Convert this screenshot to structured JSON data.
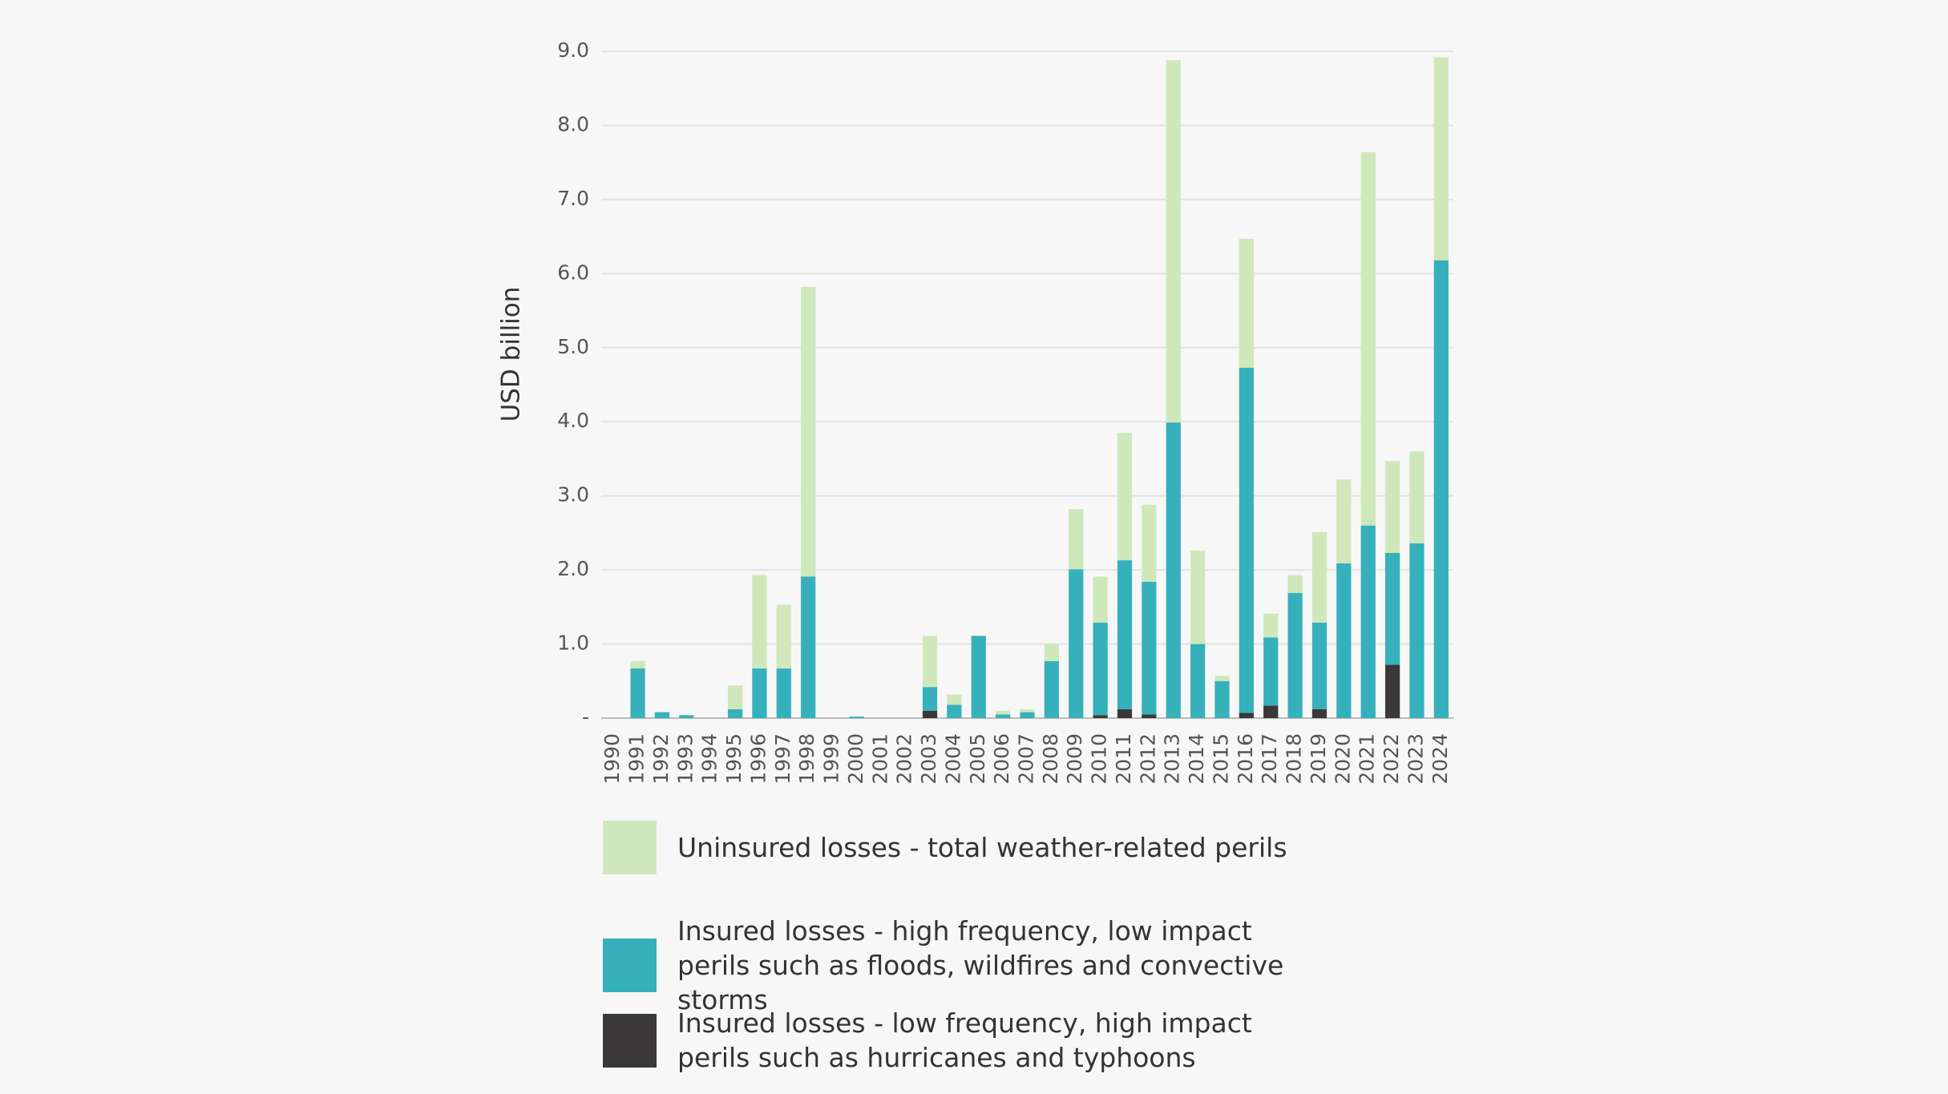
{
  "chart_data": {
    "type": "stacked_bar",
    "y_label": "USD billion",
    "categories": [
      "1990",
      "1991",
      "1992",
      "1993",
      "1994",
      "1995",
      "1996",
      "1997",
      "1998",
      "1999",
      "2000",
      "2001",
      "2002",
      "2003",
      "2004",
      "2005",
      "2006",
      "2007",
      "2008",
      "2009",
      "2010",
      "2011",
      "2012",
      "2013",
      "2014",
      "2015",
      "2016",
      "2017",
      "2018",
      "2019",
      "2020",
      "2021",
      "2022",
      "2023",
      "2024"
    ],
    "series": [
      {
        "name": "Uninsured losses - total weather-related perils",
        "color": "#cfe8bb",
        "values": [
          0,
          0.1,
          0,
          0,
          0,
          0.32,
          1.26,
          0.86,
          3.91,
          0,
          0,
          0,
          0,
          0.69,
          0.14,
          0,
          0.05,
          0.04,
          0.23,
          0.81,
          0.62,
          1.72,
          1.04,
          4.89,
          1.26,
          0.07,
          1.74,
          0.32,
          0.24,
          1.22,
          1.13,
          5.04,
          1.24,
          1.24,
          2.74
        ]
      },
      {
        "name": "Insured losses - high frequency, low impact perils such as floods, wildfires and convective storms",
        "color": "#36b0bb",
        "values": [
          0,
          0.67,
          0.08,
          0.04,
          0,
          0.12,
          0.67,
          0.67,
          1.91,
          0,
          0.02,
          0,
          0,
          0.32,
          0.18,
          1.11,
          0.05,
          0.08,
          0.77,
          2.01,
          1.25,
          2.01,
          1.79,
          3.99,
          1.0,
          0.5,
          4.66,
          0.92,
          1.69,
          1.17,
          2.09,
          2.6,
          1.51,
          2.36,
          6.18
        ]
      },
      {
        "name": "Insured losses - low frequency, high impact perils such as hurricanes and typhoons",
        "color": "#3a3838",
        "values": [
          0,
          0,
          0,
          0,
          0,
          0,
          0,
          0,
          0,
          0,
          0,
          0,
          0,
          0.1,
          0,
          0,
          0,
          0,
          0,
          0,
          0.04,
          0.12,
          0.05,
          0,
          0,
          0,
          0.07,
          0.17,
          0,
          0.12,
          0,
          0,
          0.72,
          0,
          0
        ]
      }
    ],
    "ylim": [
      0,
      9
    ],
    "yticks": [
      {
        "value": 0,
        "label": "-"
      },
      {
        "value": 1,
        "label": "1.0"
      },
      {
        "value": 2,
        "label": "2.0"
      },
      {
        "value": 3,
        "label": "3.0"
      },
      {
        "value": 4,
        "label": "4.0"
      },
      {
        "value": 5,
        "label": "5.0"
      },
      {
        "value": 6,
        "label": "6.0"
      },
      {
        "value": 7,
        "label": "7.0"
      },
      {
        "value": 8,
        "label": "8.0"
      },
      {
        "value": 9,
        "label": "9.0"
      }
    ],
    "grid": true
  }
}
